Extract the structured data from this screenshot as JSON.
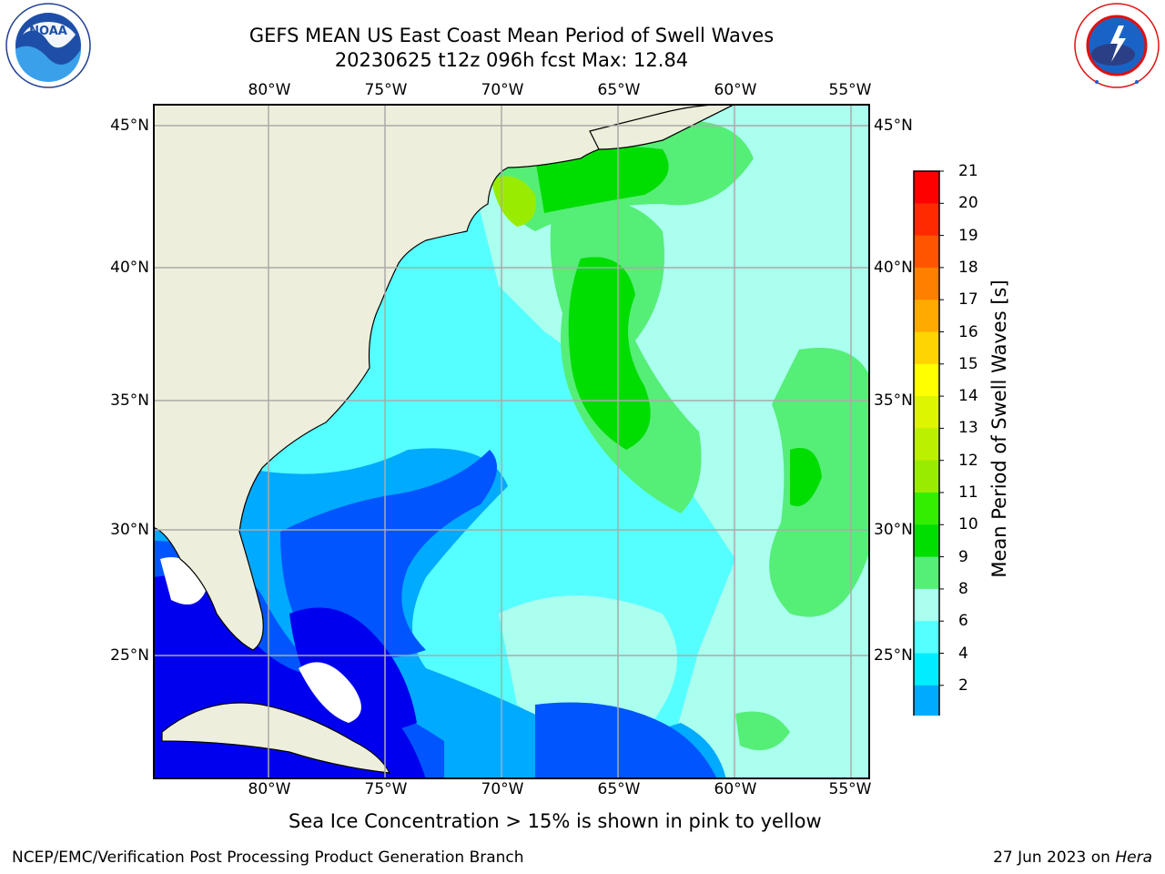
{
  "header": {
    "title_line1": "GEFS MEAN US East Coast Mean Period of Swell Waves",
    "title_line2": "20230625 t12z 096h fcst   Max: 12.84"
  },
  "logos": {
    "left": "noaa-logo",
    "left_text": "NOAA",
    "left_ring_text": "NATIONAL OCEANIC AND ATMOSPHERIC ADMINISTRATION · U.S. DEPARTMENT OF COMMERCE",
    "right": "nws-logo",
    "right_ring_text": "NATIONAL WEATHER SERVICE"
  },
  "map": {
    "projection": "plate-carree",
    "lon_range": [
      -85,
      -54
    ],
    "lat_range": [
      20.5,
      46
    ],
    "lon_ticks": [
      "80°W",
      "75°W",
      "70°W",
      "65°W",
      "60°W",
      "55°W"
    ],
    "lat_ticks": [
      "45°N",
      "40°N",
      "35°N",
      "30°N",
      "25°N"
    ],
    "grid": true,
    "land_color": "#eeeedc",
    "field": "Mean Period of Swell Waves",
    "max_value": 12.84
  },
  "colorbar": {
    "label": "Mean Period of Swell Waves [s]",
    "ticks": [
      "21",
      "20",
      "19",
      "18",
      "17",
      "16",
      "15",
      "14",
      "13",
      "12",
      "11",
      "10",
      "9",
      "8",
      "6",
      "4",
      "2"
    ],
    "colors": [
      "#ff0000",
      "#ff2a00",
      "#ff5500",
      "#ff8000",
      "#ffaa00",
      "#ffd400",
      "#ffff00",
      "#ddf500",
      "#bbf000",
      "#99ec00",
      "#33ee00",
      "#00dd00",
      "#55ee77",
      "#aaffee",
      "#55ffff",
      "#00eeff",
      "#00aaff",
      "#0055ff"
    ],
    "extend_min_color": "#0000ee",
    "orientation": "vertical",
    "placement": "right"
  },
  "note": "Sea Ice Concentration > 15% is shown in pink to yellow",
  "footer": {
    "left": "NCEP/EMC/Verification Post Processing Product Generation Branch",
    "right_prefix": "27 Jun 2023 on ",
    "right_host": "Hera"
  }
}
